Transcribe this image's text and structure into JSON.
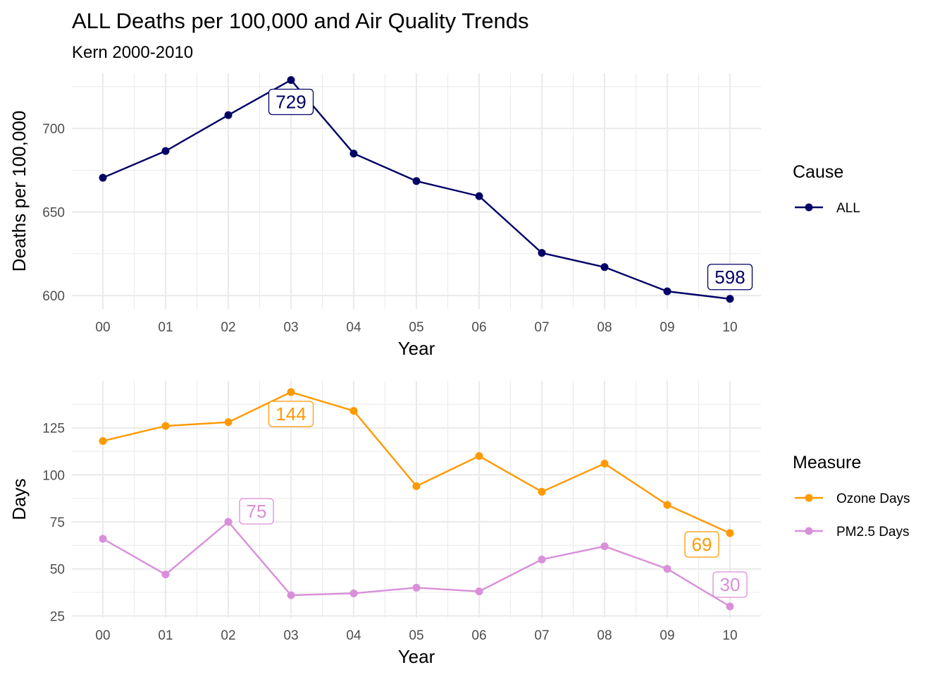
{
  "title": "ALL Deaths per 100,000 and Air Quality Trends",
  "subtitle": "Kern 2000-2010",
  "chart_data": [
    {
      "type": "line",
      "x": [
        "00",
        "01",
        "02",
        "03",
        "04",
        "05",
        "06",
        "07",
        "08",
        "09",
        "10"
      ],
      "xlabel": "Year",
      "ylabel": "Deaths per 100,000",
      "ylim": [
        592,
        733
      ],
      "yticks": [
        600,
        650,
        700
      ],
      "grid": true,
      "legend": {
        "title": "Cause",
        "placement": "right"
      },
      "series": [
        {
          "name": "ALL",
          "color": "#000066",
          "values": [
            670.5,
            686.5,
            708,
            729,
            685,
            668.5,
            659.5,
            625.5,
            617,
            602.5,
            598
          ]
        }
      ],
      "annotations": [
        {
          "series": 0,
          "index": 3,
          "text": "729",
          "pos": "below"
        },
        {
          "series": 0,
          "index": 10,
          "text": "598",
          "pos": "above"
        }
      ]
    },
    {
      "type": "line",
      "x": [
        "00",
        "01",
        "02",
        "03",
        "04",
        "05",
        "06",
        "07",
        "08",
        "09",
        "10"
      ],
      "xlabel": "Year",
      "ylabel": "Days",
      "ylim": [
        24,
        150
      ],
      "yticks": [
        25,
        50,
        75,
        100,
        125
      ],
      "grid": true,
      "legend": {
        "title": "Measure",
        "placement": "right"
      },
      "series": [
        {
          "name": "Ozone Days",
          "color": "#ff9900",
          "values": [
            118,
            126,
            128,
            144,
            134,
            94,
            110,
            91,
            106,
            84,
            69
          ]
        },
        {
          "name": "PM2.5 Days",
          "color": "#d98fd9",
          "values": [
            66,
            47,
            75,
            36,
            37,
            40,
            38,
            55,
            62,
            50,
            30
          ]
        }
      ],
      "annotations": [
        {
          "series": 0,
          "index": 3,
          "text": "144",
          "pos": "below"
        },
        {
          "series": 0,
          "index": 10,
          "text": "69",
          "pos": "below-left"
        },
        {
          "series": 1,
          "index": 2,
          "text": "75",
          "pos": "above-right"
        },
        {
          "series": 1,
          "index": 10,
          "text": "30",
          "pos": "above"
        }
      ]
    }
  ]
}
